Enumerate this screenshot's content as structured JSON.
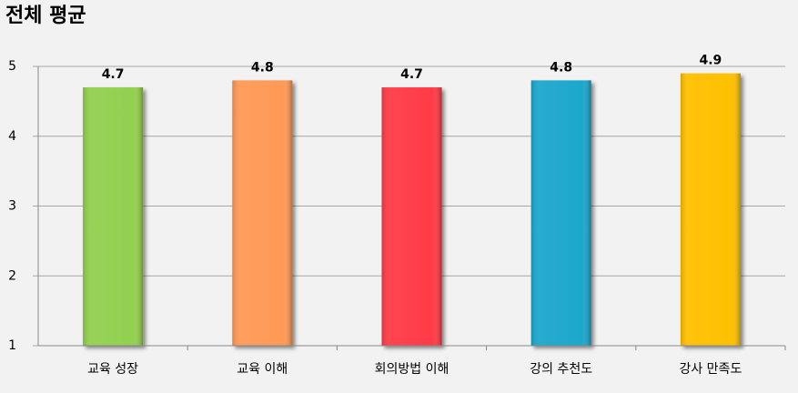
{
  "chart_data": {
    "type": "bar",
    "title": "전체 평균",
    "categories": [
      "교육 성장",
      "교육 이해",
      "회의방법 이해",
      "강의 추천도",
      "강사 만족도"
    ],
    "values": [
      4.7,
      4.8,
      4.7,
      4.8,
      4.9
    ],
    "colors": [
      "#92d050",
      "#ff9955",
      "#ff3b47",
      "#1aa7cc",
      "#ffc000"
    ],
    "ylim": [
      1,
      5
    ],
    "yticks": [
      1,
      2,
      3,
      4,
      5
    ],
    "grid": true
  }
}
